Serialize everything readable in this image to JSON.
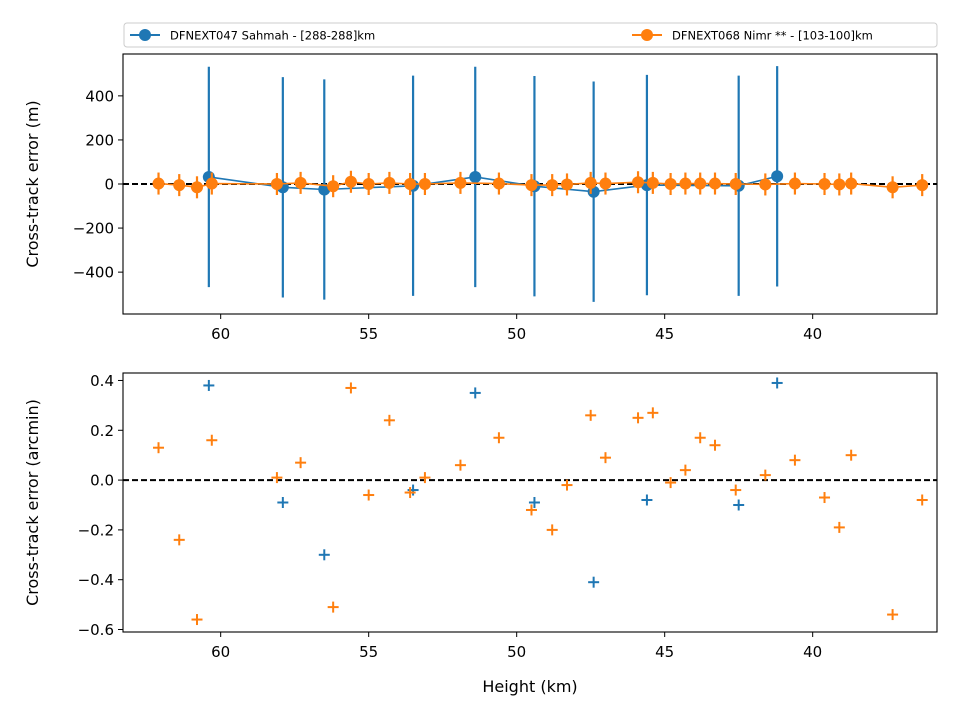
{
  "chart_data": [
    {
      "type": "line",
      "ylabel": "Cross-track error (m)",
      "xlabel": "",
      "xlim": [
        63.3,
        35.8
      ],
      "ylim": [
        -590,
        590
      ],
      "x_ticks": [
        60,
        55,
        50,
        45,
        40
      ],
      "y_ticks": [
        -400,
        -200,
        0,
        200,
        400
      ],
      "y_tick_labels": [
        "−400",
        "−200",
        "0",
        "200",
        "400"
      ],
      "reference_line": {
        "y": 0,
        "style": "dashed",
        "color": "#000000"
      },
      "legend": {
        "placement": "top",
        "columns": 2
      },
      "series": [
        {
          "name": "DFNEXT047 Sahmah - [288-288]km",
          "color": "#1f77b4",
          "marker": "circle",
          "x": [
            60.4,
            57.9,
            56.5,
            53.5,
            51.4,
            49.4,
            47.4,
            45.6,
            42.5,
            41.2
          ],
          "y": [
            32,
            -15,
            -25,
            -8,
            32,
            -10,
            -35,
            -5,
            -8,
            35
          ],
          "yerr": [
            500,
            500,
            500,
            500,
            500,
            500,
            500,
            500,
            500,
            500
          ]
        },
        {
          "name": "DFNEXT068 Nimr **  - [103-100]km",
          "color": "#ff7f0e",
          "marker": "circle",
          "x": [
            62.1,
            61.4,
            60.8,
            60.3,
            58.1,
            57.3,
            56.2,
            55.6,
            55.0,
            54.3,
            53.6,
            53.1,
            51.9,
            50.6,
            49.5,
            48.8,
            48.3,
            47.5,
            47.0,
            45.9,
            45.4,
            44.8,
            44.3,
            43.8,
            43.3,
            42.6,
            41.6,
            40.6,
            39.6,
            39.1,
            38.7,
            37.3,
            36.3
          ],
          "y": [
            2,
            -5,
            -15,
            2,
            0,
            5,
            -10,
            10,
            0,
            5,
            0,
            0,
            5,
            2,
            -5,
            -5,
            -2,
            5,
            2,
            8,
            5,
            0,
            2,
            2,
            2,
            0,
            -2,
            2,
            0,
            -2,
            2,
            -15,
            -5
          ],
          "yerr": [
            50,
            50,
            50,
            50,
            50,
            50,
            50,
            50,
            50,
            50,
            50,
            50,
            50,
            50,
            50,
            50,
            50,
            50,
            50,
            50,
            50,
            50,
            50,
            50,
            50,
            50,
            50,
            50,
            50,
            50,
            50,
            50,
            50
          ]
        }
      ]
    },
    {
      "type": "scatter",
      "ylabel": "Cross-track error (arcmin)",
      "xlabel": "Height (km)",
      "xlim": [
        63.3,
        35.8
      ],
      "ylim": [
        -0.61,
        0.43
      ],
      "x_ticks": [
        60,
        55,
        50,
        45,
        40
      ],
      "y_ticks": [
        -0.6,
        -0.4,
        -0.2,
        0.0,
        0.2,
        0.4
      ],
      "y_tick_labels": [
        "−0.6",
        "−0.4",
        "−0.2",
        "0.0",
        "0.2",
        "0.4"
      ],
      "reference_line": {
        "y": 0,
        "style": "dashed",
        "color": "#000000"
      },
      "series": [
        {
          "color": "#1f77b4",
          "marker": "plus",
          "x": [
            60.4,
            57.9,
            56.5,
            53.5,
            51.4,
            49.4,
            47.4,
            45.6,
            42.5,
            41.2
          ],
          "y": [
            0.38,
            -0.09,
            -0.3,
            -0.04,
            0.35,
            -0.09,
            -0.41,
            -0.08,
            -0.1,
            0.39
          ]
        },
        {
          "color": "#ff7f0e",
          "marker": "plus",
          "x": [
            62.1,
            61.4,
            60.8,
            60.3,
            58.1,
            57.3,
            56.2,
            55.6,
            55.0,
            54.3,
            53.6,
            53.1,
            51.9,
            50.6,
            49.5,
            48.8,
            48.3,
            47.5,
            47.0,
            45.9,
            45.4,
            44.8,
            44.3,
            43.8,
            43.3,
            42.6,
            41.6,
            40.6,
            39.6,
            39.1,
            38.7,
            37.3,
            36.3
          ],
          "y": [
            0.13,
            -0.24,
            -0.56,
            0.16,
            0.01,
            0.07,
            -0.51,
            0.37,
            -0.06,
            0.24,
            -0.05,
            0.01,
            0.06,
            0.17,
            -0.12,
            -0.2,
            -0.02,
            0.26,
            0.09,
            0.25,
            0.27,
            -0.01,
            0.04,
            0.17,
            0.14,
            -0.04,
            0.02,
            0.08,
            -0.07,
            -0.19,
            0.1,
            -0.54,
            -0.08
          ]
        }
      ]
    }
  ]
}
